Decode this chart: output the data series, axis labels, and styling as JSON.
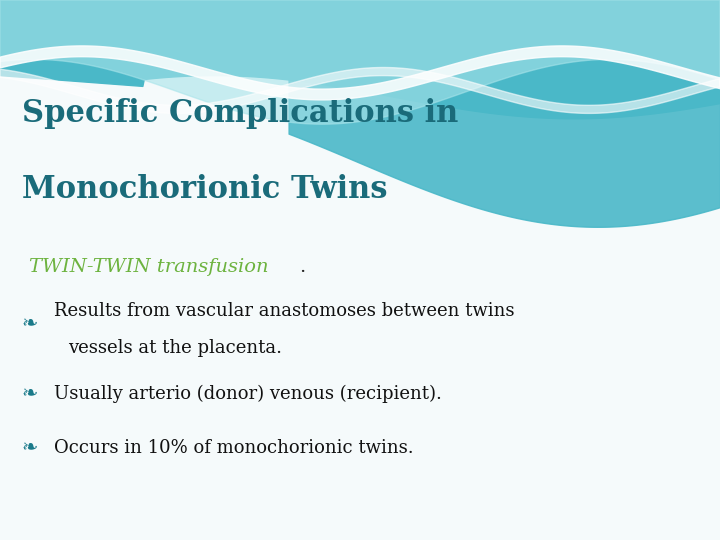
{
  "title_line1": "Specific Complications in",
  "title_line2": "Monochorionic Twins",
  "title_color": "#1a6b7a",
  "subtitle_italic": "TWIN-TWIN transfusion",
  "subtitle_period": ".",
  "subtitle_color": "#6db33f",
  "subtitle_period_color": "#222222",
  "bullet_symbol": "❧",
  "bullet_color": "#1a7a8a",
  "bullets": [
    "Results from vascular anastomoses between twins\n    vessels at the placenta.",
    "Usually arterio (donor) venous (recipient).",
    "Occurs in 10% of monochorionic twins."
  ],
  "bullet_text_color": "#111111",
  "bg_color": "#f5fafb",
  "wave_teal_dark": "#4ab8c8",
  "wave_teal_mid": "#7fd4de",
  "wave_teal_light": "#a8e4ea",
  "wave_white": "#ffffff",
  "title_fontsize": 22,
  "subtitle_fontsize": 14,
  "bullet_fontsize": 13
}
